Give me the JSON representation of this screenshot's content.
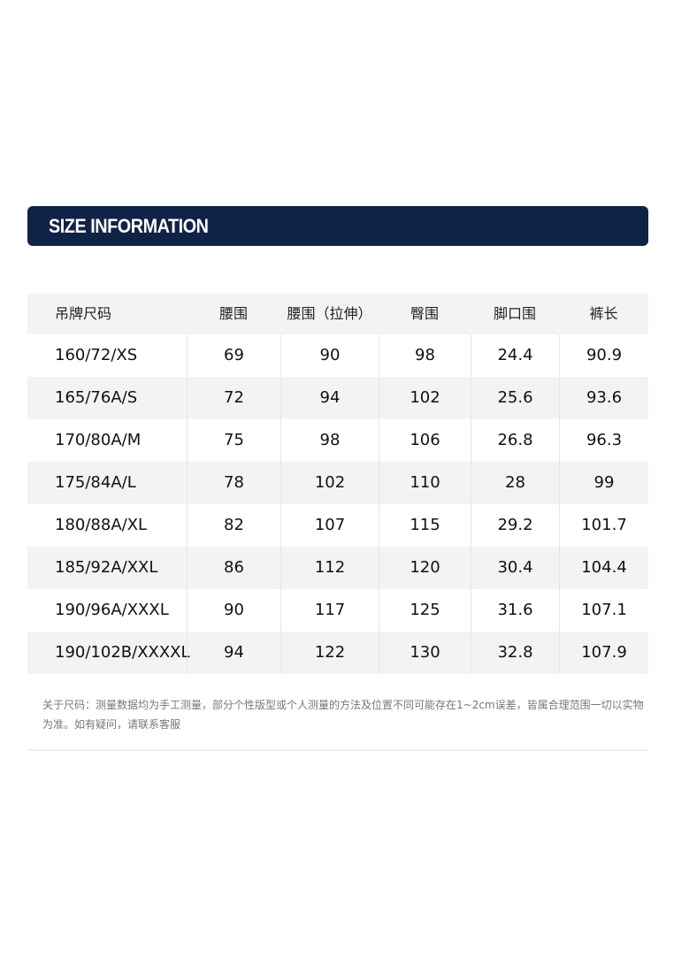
{
  "header": {
    "title": "SIZE INFORMATION"
  },
  "table": {
    "headers": [
      "吊牌尺码",
      "腰围",
      "腰围（拉伸）",
      "臀围",
      "脚口围",
      "裤长"
    ],
    "rows": [
      [
        "160/72/XS",
        "69",
        "90",
        "98",
        "24.4",
        "90.9"
      ],
      [
        "165/76A/S",
        "72",
        "94",
        "102",
        "25.6",
        "93.6"
      ],
      [
        "170/80A/M",
        "75",
        "98",
        "106",
        "26.8",
        "96.3"
      ],
      [
        "175/84A/L",
        "78",
        "102",
        "110",
        "28",
        "99"
      ],
      [
        "180/88A/XL",
        "82",
        "107",
        "115",
        "29.2",
        "101.7"
      ],
      [
        "185/92A/XXL",
        "86",
        "112",
        "120",
        "30.4",
        "104.4"
      ],
      [
        "190/96A/XXXL",
        "90",
        "117",
        "125",
        "31.6",
        "107.1"
      ],
      [
        "190/102B/XXXXL",
        "94",
        "122",
        "130",
        "32.8",
        "107.9"
      ]
    ]
  },
  "note": "关于尺码：测量数据均为手工测量，部分个性版型或个人测量的方法及位置不同可能存在1~2cm误差，皆属合理范围一切以实物为准。如有疑问，请联系客服"
}
